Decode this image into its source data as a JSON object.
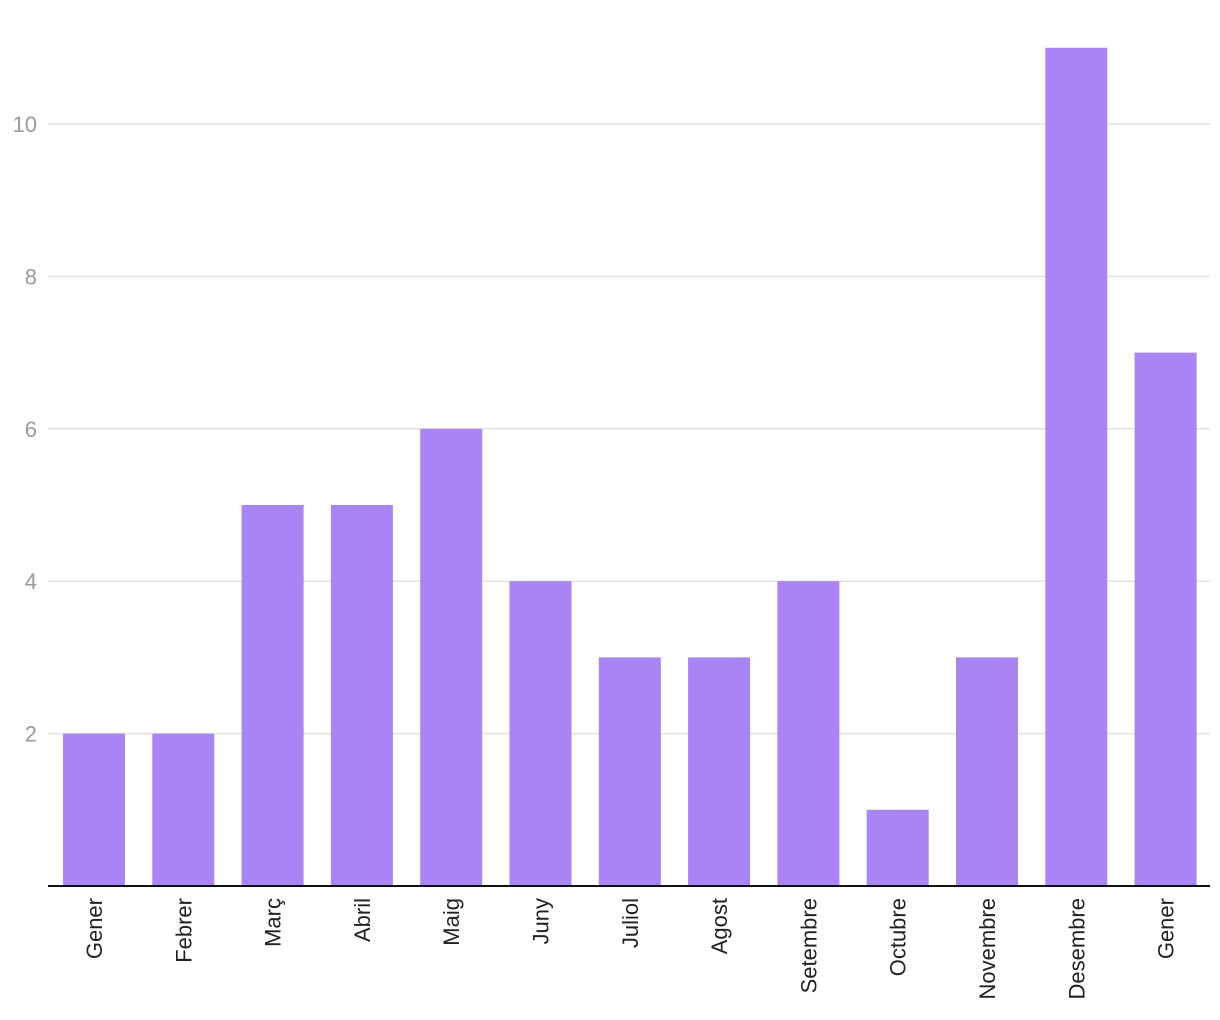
{
  "chart_data": {
    "type": "bar",
    "categories": [
      "Gener",
      "Febrer",
      "Març",
      "Abril",
      "Maig",
      "Juny",
      "Juliol",
      "Agost",
      "Setembre",
      "Octubre",
      "Novembre",
      "Desembre",
      "Gener"
    ],
    "values": [
      2,
      2,
      5,
      5,
      6,
      4,
      3,
      3,
      4,
      1,
      3,
      11,
      7
    ],
    "title": "",
    "xlabel": "",
    "ylabel": "",
    "ylim": [
      0,
      11
    ],
    "yticks": [
      "2",
      "4",
      "6",
      "8",
      "10"
    ],
    "grid": true,
    "bar_color": "#a884f5",
    "grid_color": "#e2e2e2",
    "axis_color": "#111111"
  }
}
